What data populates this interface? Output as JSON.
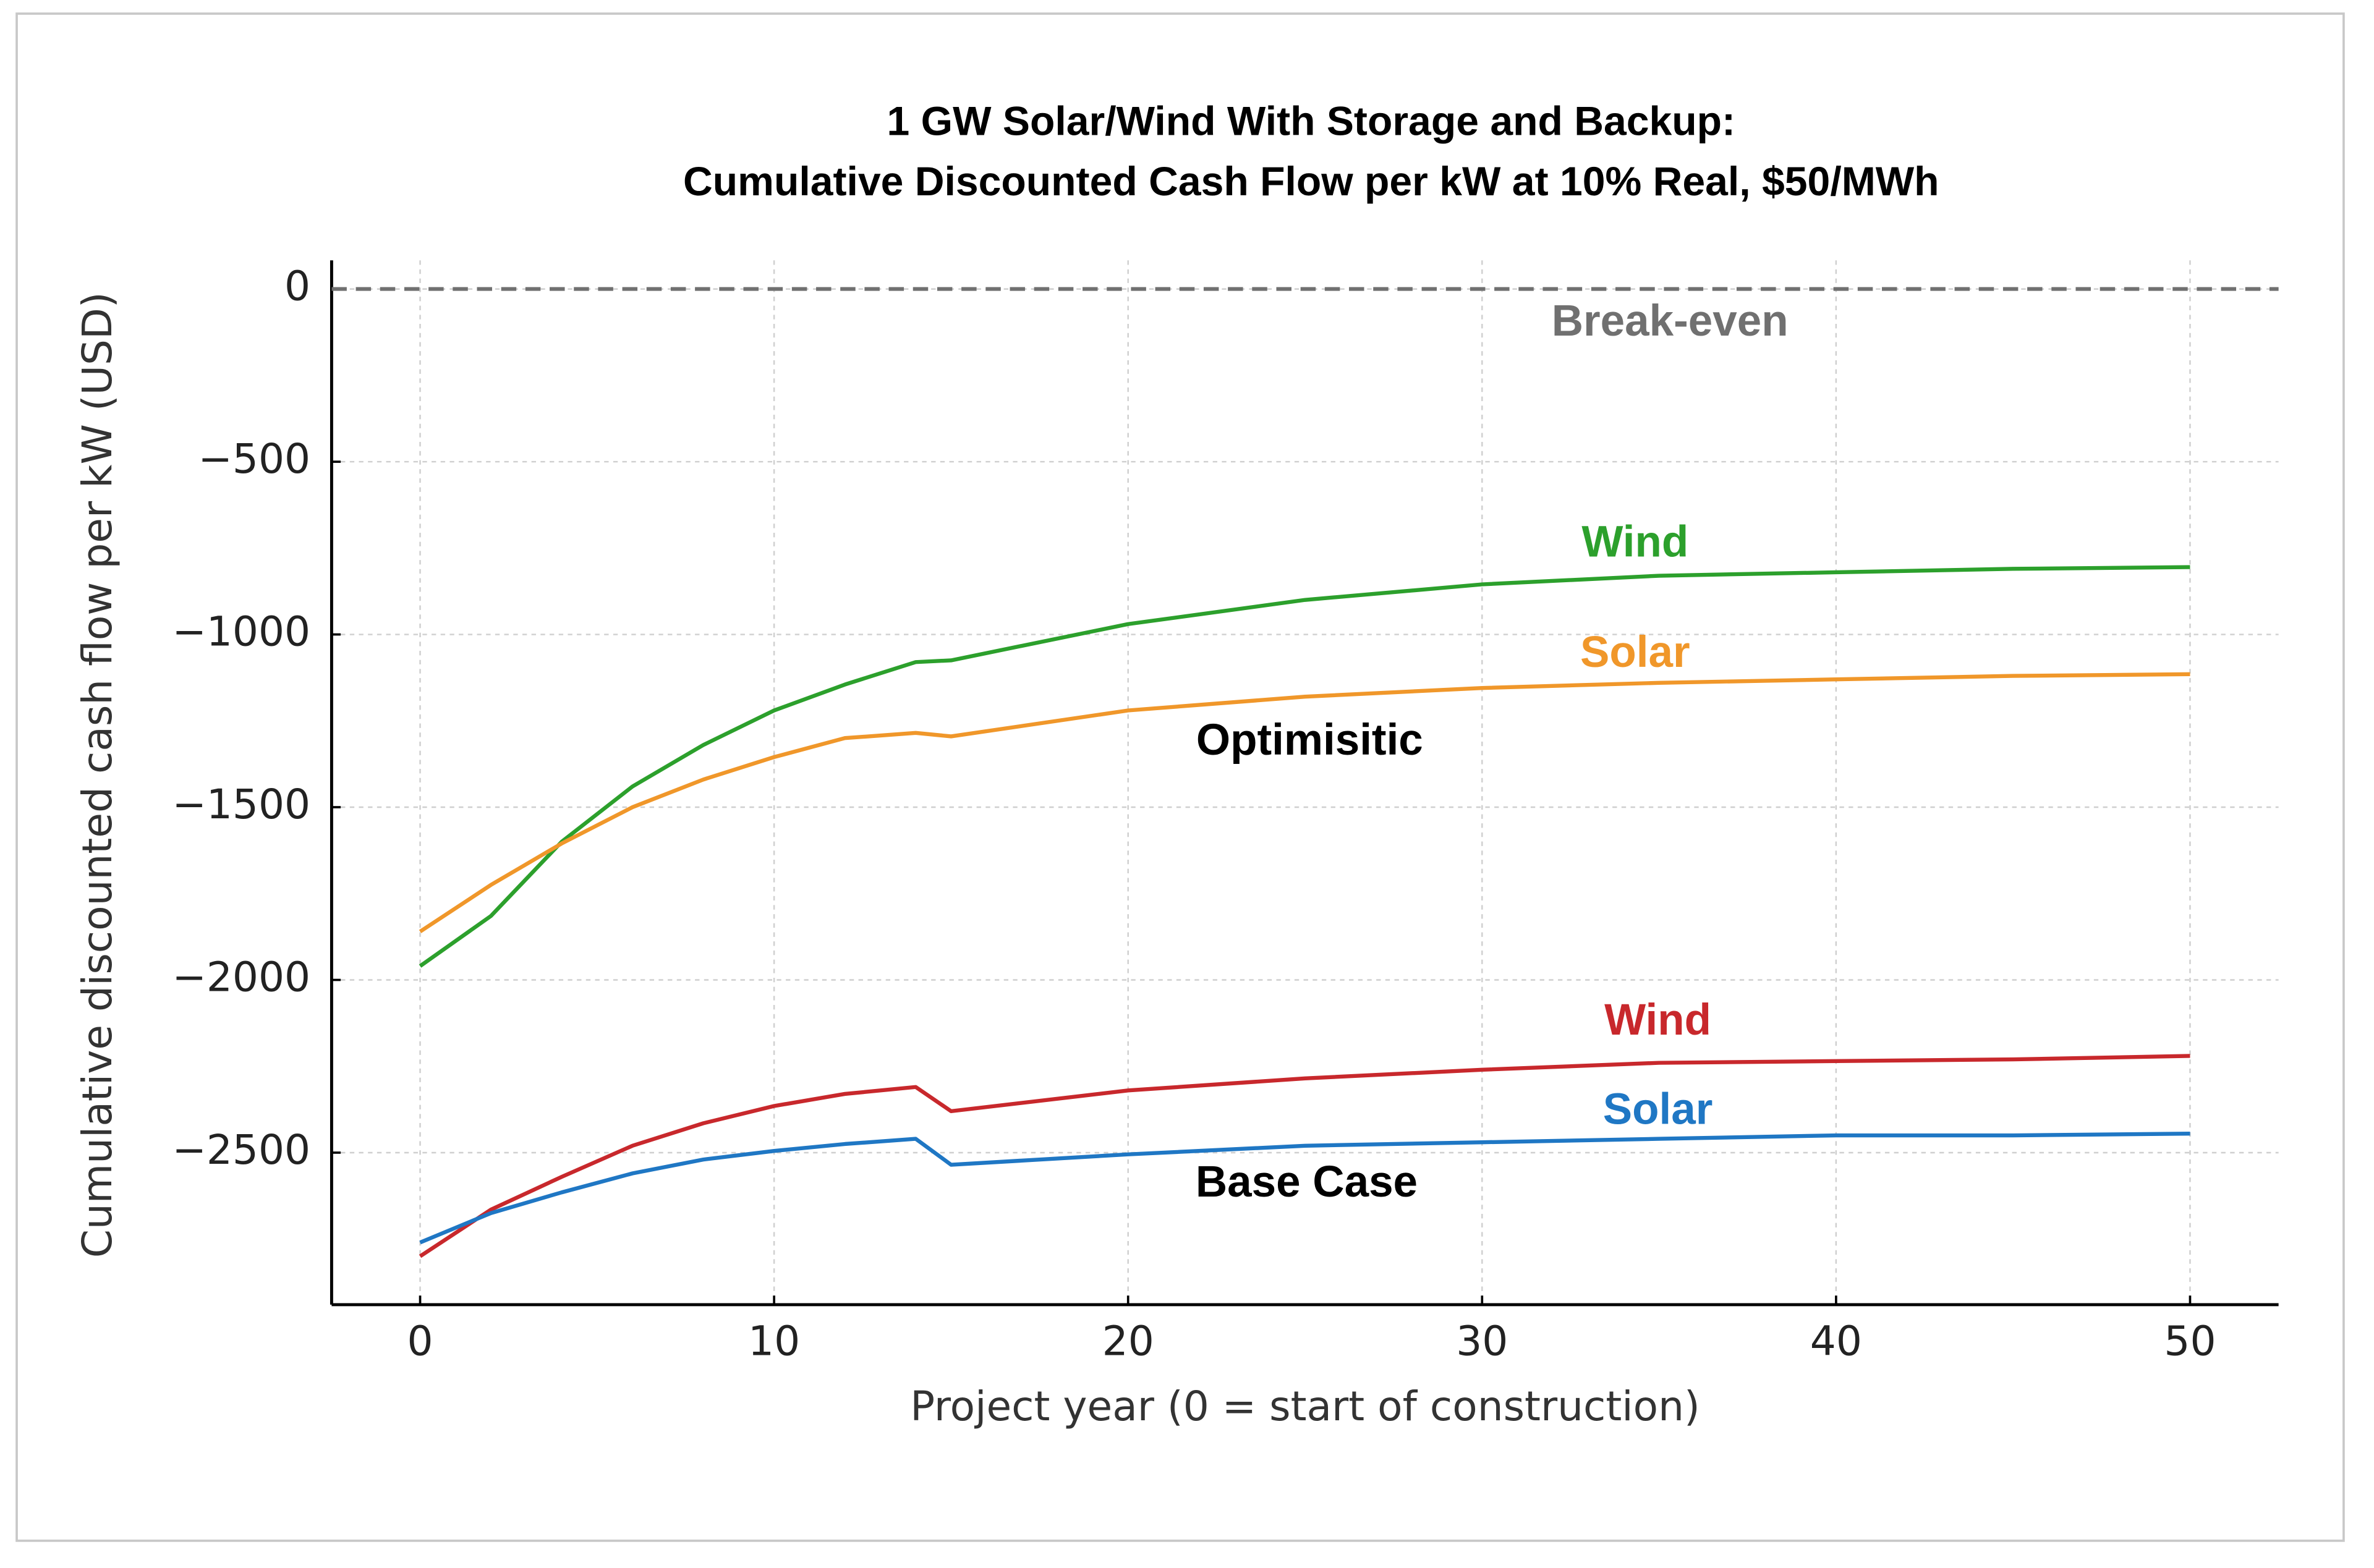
{
  "chart_data": {
    "type": "line",
    "title": [
      "1 GW Solar/Wind With Storage and Backup:",
      "Cumulative Discounted Cash Flow per kW at 10% Real, $50/MWh"
    ],
    "x_label": "Project year (0 = start of construction)",
    "y_label": "Cumulative discounted cash flow per kW (USD)",
    "x": [
      0,
      2,
      4,
      6,
      8,
      10,
      12,
      14,
      15,
      20,
      25,
      30,
      35,
      40,
      45,
      50
    ],
    "series": [
      {
        "name": "Wind",
        "color": "#2ca02c",
        "values": [
          -1960,
          -1815,
          -1600,
          -1440,
          -1320,
          -1220,
          -1145,
          -1080,
          -1075,
          -970,
          -900,
          -855,
          -830,
          -820,
          -810,
          -805
        ]
      },
      {
        "name": "Solar",
        "color": "#f0972a",
        "values": [
          -1860,
          -1725,
          -1605,
          -1500,
          -1420,
          -1355,
          -1300,
          -1285,
          -1295,
          -1220,
          -1180,
          -1155,
          -1140,
          -1130,
          -1120,
          -1115
        ]
      },
      {
        "name": "Wind",
        "color": "#c8282c",
        "values": [
          -2800,
          -2665,
          -2570,
          -2480,
          -2415,
          -2365,
          -2330,
          -2310,
          -2380,
          -2320,
          -2285,
          -2260,
          -2240,
          -2235,
          -2230,
          -2220
        ]
      },
      {
        "name": "Solar",
        "color": "#1f77c4",
        "values": [
          -2760,
          -2675,
          -2615,
          -2560,
          -2520,
          -2495,
          -2475,
          -2460,
          -2535,
          -2505,
          -2480,
          -2470,
          -2460,
          -2450,
          -2450,
          -2445
        ]
      }
    ],
    "annotations": [
      "Optimisitic",
      "Base Case"
    ],
    "reference_line": {
      "y": 0,
      "label": "Break-even",
      "color": "#707070"
    },
    "xlim": [
      -2.5,
      52.5
    ],
    "ylim": [
      -2940,
      83
    ],
    "xticks": [
      0,
      10,
      20,
      30,
      40,
      50
    ],
    "yticks": [
      0,
      {
        "value": -500,
        "label": "−500"
      },
      {
        "value": -1000,
        "label": "−1000"
      },
      {
        "value": -1500,
        "label": "−1500"
      },
      {
        "value": -2000,
        "label": "−2000"
      },
      {
        "value": -2500,
        "label": "−2500"
      }
    ],
    "grid": true
  }
}
